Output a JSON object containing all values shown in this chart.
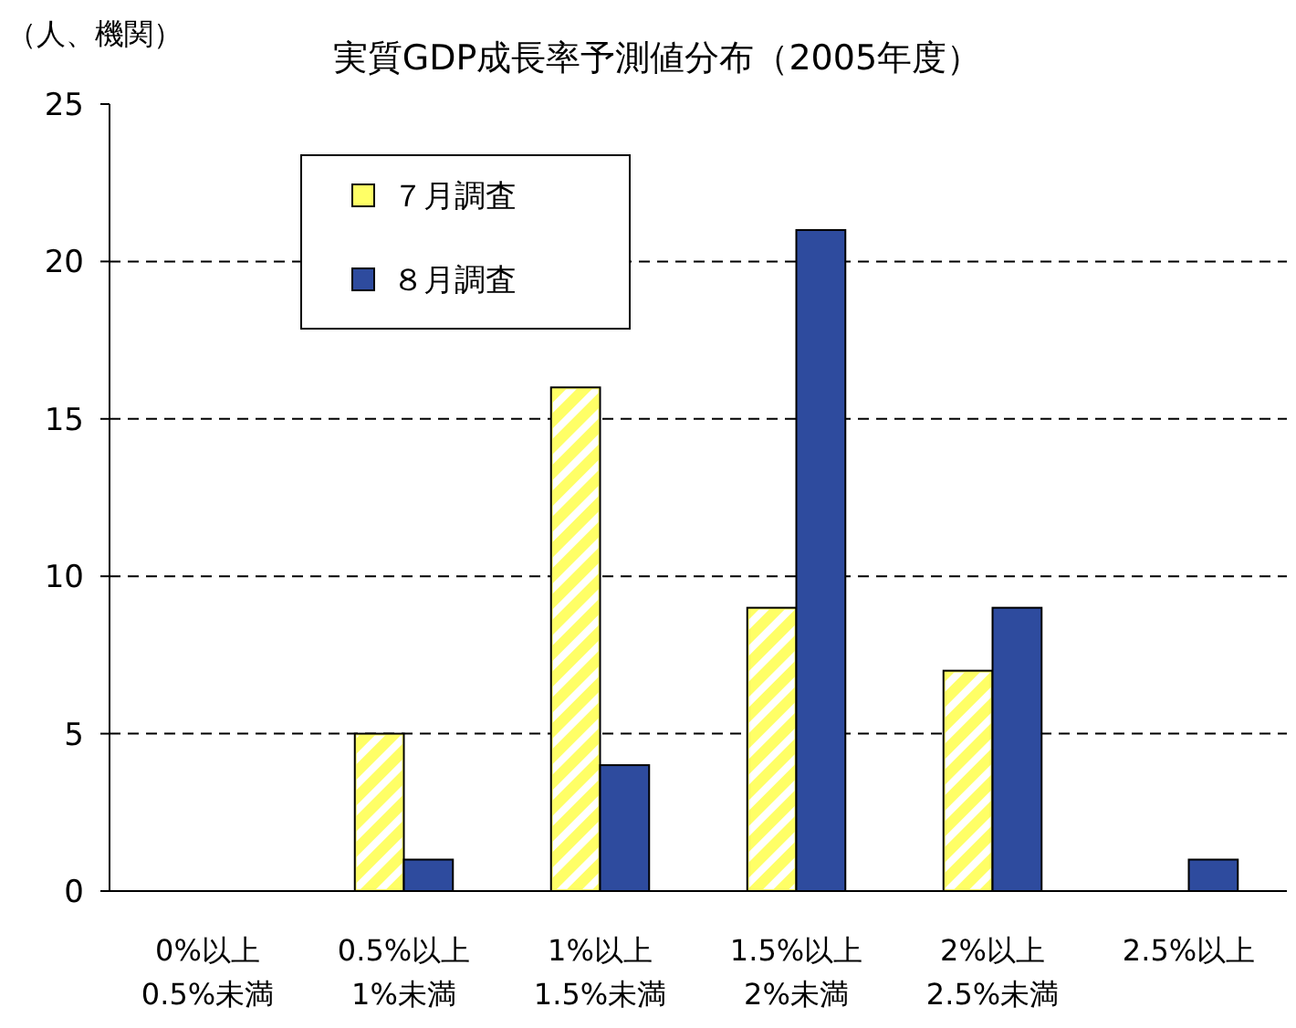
{
  "chart_data": {
    "type": "bar",
    "title": "実質GDP成長率予測値分布（2005年度）",
    "ylabel": "（人、機関）",
    "categories": [
      "0%以上\n0.5%未満",
      "0.5%以上\n1%未満",
      "1%以上\n1.5%未満",
      "1.5%以上\n2%未満",
      "2%以上\n2.5%未満",
      "2.5%以上"
    ],
    "series": [
      {
        "name": "７月調査",
        "color": "#ffff66",
        "values": [
          0,
          5,
          16,
          9,
          7,
          0
        ]
      },
      {
        "name": "８月調査",
        "color": "#2e4b9e",
        "values": [
          0,
          1,
          4,
          21,
          9,
          1
        ]
      }
    ],
    "ylim": [
      0,
      25
    ],
    "yticks": [
      0,
      5,
      10,
      15,
      20,
      25
    ],
    "grid": "y",
    "legend": "top left"
  }
}
